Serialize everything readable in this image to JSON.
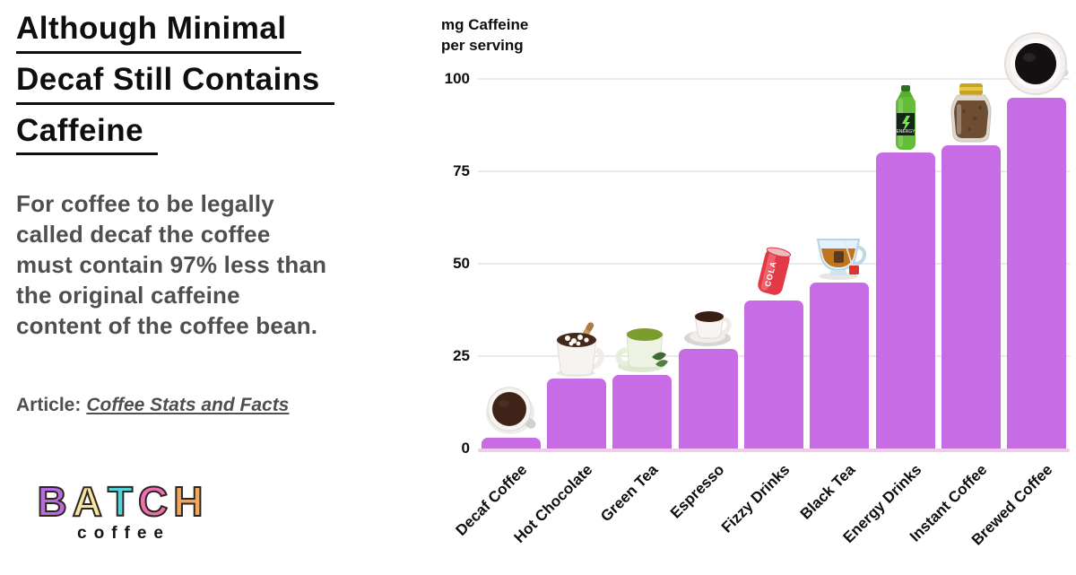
{
  "left_panel": {
    "title_lines": [
      "Although Minimal",
      "Decaf Still Contains",
      "Caffeine"
    ],
    "body_text": "For coffee to be legally\ncalled decaf the coffee\nmust contain 97% less than\nthe original caffeine\ncontent of the coffee bean.",
    "article_label": "Article:",
    "article_link": "Coffee Stats and Facts",
    "logo": {
      "letters": [
        {
          "char": "B",
          "color": "#b76be0"
        },
        {
          "char": "A",
          "color": "#f6e7a0"
        },
        {
          "char": "T",
          "color": "#52d5dd"
        },
        {
          "char": "C",
          "color": "#ef6fb1"
        },
        {
          "char": "H",
          "color": "#f2a65a"
        }
      ],
      "subtext": "coffee"
    }
  },
  "chart_data": {
    "type": "bar",
    "ylabel_lines": [
      "mg Caffeine",
      "per serving"
    ],
    "categories": [
      "Decaf Coffee",
      "Hot Chocolate",
      "Green Tea",
      "Espresso",
      "Fizzy Drinks",
      "Black Tea",
      "Energy Drinks",
      "Instant Coffee",
      "Brewed Coffee"
    ],
    "values": [
      3,
      19,
      20,
      27,
      40,
      45,
      80,
      82,
      95
    ],
    "unit": "mg caffeine per serving",
    "yticks": [
      0,
      25,
      50,
      75,
      100
    ],
    "ylim": [
      0,
      100
    ],
    "grid": true,
    "legend": "none",
    "bar_color": "#c76ce4",
    "grid_color": "#e9e9e9",
    "baseline_color": "#f4c9ee",
    "icons": [
      "decaf-coffee-top-icon",
      "hot-chocolate-icon",
      "green-tea-icon",
      "espresso-icon",
      "cola-can-icon",
      "black-tea-icon",
      "energy-bottle-icon",
      "instant-coffee-jar-icon",
      "brewed-coffee-top-icon"
    ]
  }
}
